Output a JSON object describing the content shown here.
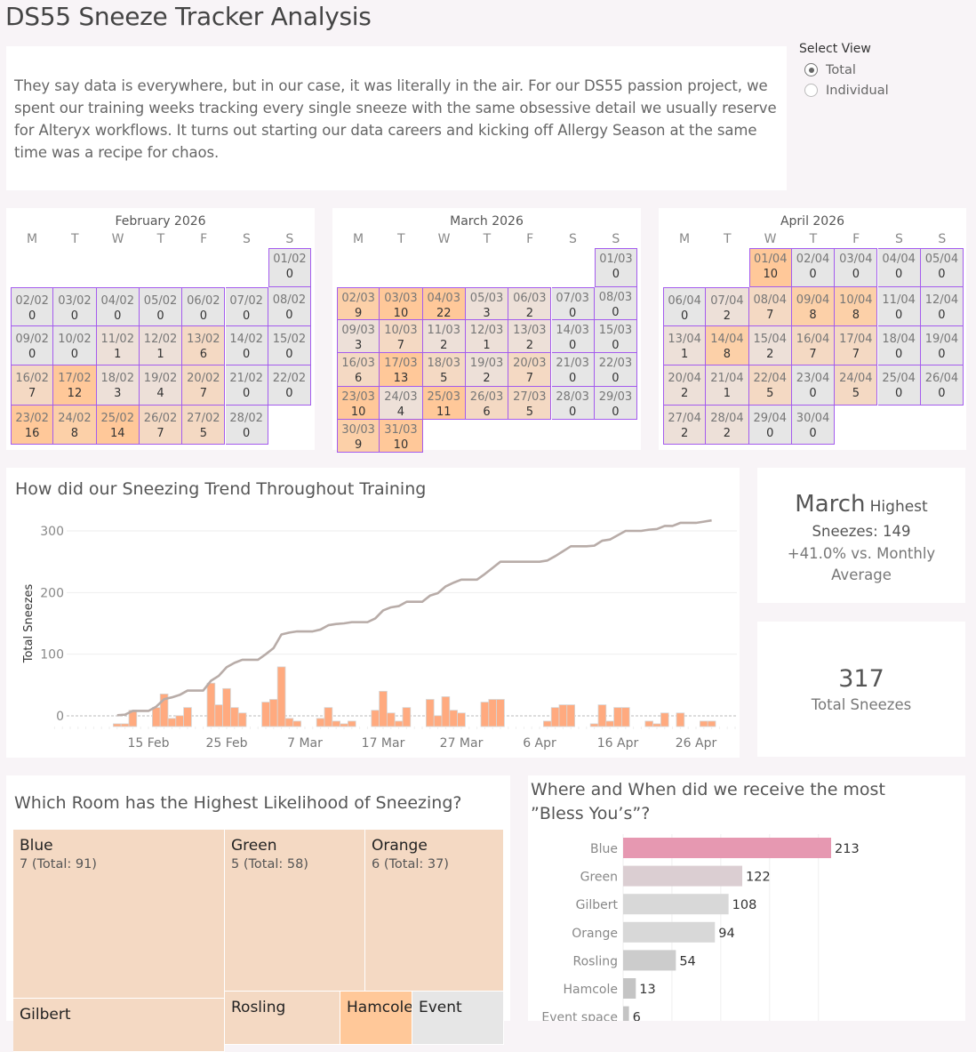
{
  "header": {
    "title": "DS55 Sneeze Tracker Analysis"
  },
  "intro": {
    "text": "They say data is everywhere, but in our case, it was literally in the air. For our DS55 passion project, we spent our training weeks tracking every single sneeze with the same obsessive detail we usually reserve for Alteryx workflows. It turns out starting our data careers and kicking off Allergy Season at the same time was a recipe for chaos."
  },
  "select_view": {
    "label": "Select View",
    "options": [
      {
        "label": "Total",
        "selected": true
      },
      {
        "label": "Individual",
        "selected": false
      }
    ]
  },
  "weekday_labels": [
    "M",
    "T",
    "W",
    "T",
    "F",
    "S",
    "S"
  ],
  "calendars": [
    {
      "title": "February 2026",
      "start_col": 6,
      "month": "02",
      "values": [
        0,
        0,
        0,
        0,
        0,
        0,
        0,
        0,
        0,
        0,
        1,
        1,
        6,
        0,
        0,
        7,
        12,
        3,
        4,
        7,
        0,
        0,
        16,
        8,
        14,
        7,
        5,
        0
      ]
    },
    {
      "title": "March 2026",
      "start_col": 6,
      "month": "03",
      "values": [
        0,
        9,
        10,
        22,
        3,
        2,
        0,
        0,
        3,
        7,
        2,
        1,
        2,
        0,
        0,
        6,
        13,
        5,
        2,
        7,
        0,
        0,
        10,
        4,
        11,
        6,
        5,
        0,
        0,
        9,
        10
      ]
    },
    {
      "title": "April 2026",
      "start_col": 2,
      "month": "04",
      "values": [
        10,
        0,
        0,
        0,
        0,
        0,
        2,
        7,
        8,
        8,
        0,
        0,
        1,
        8,
        2,
        7,
        7,
        0,
        0,
        2,
        1,
        5,
        0,
        5,
        0,
        0,
        2,
        2,
        0,
        0
      ]
    }
  ],
  "trend": {
    "title": "How did our Sneezing Trend Throughout Training",
    "colors": {
      "line": "#b8aca8",
      "bar": "#ffaa7f"
    }
  },
  "chart_data": [
    {
      "type": "line+bar",
      "title": "How did our Sneezing Trend Throughout Training",
      "ylabel": "Total Sneezes",
      "yticks": [
        0,
        100,
        200,
        300
      ],
      "ylim": [
        0,
        300
      ],
      "xticks": [
        "15 Feb",
        "25 Feb",
        "7 Mar",
        "17 Mar",
        "27 Mar",
        "6 Apr",
        "16 Apr",
        "26 Apr"
      ],
      "x_start": "2026-02-11",
      "series": [
        {
          "name": "Cumulative Sneezes",
          "kind": "line",
          "note": "running total of daily values, ends at 317"
        },
        {
          "name": "Daily Sneezes",
          "kind": "bar",
          "values": [
            1,
            1,
            6,
            0,
            0,
            7,
            12,
            3,
            4,
            7,
            0,
            0,
            16,
            8,
            14,
            7,
            5,
            0,
            0,
            9,
            10,
            22,
            3,
            2,
            0,
            0,
            3,
            7,
            2,
            1,
            2,
            0,
            0,
            6,
            13,
            5,
            2,
            7,
            0,
            0,
            10,
            4,
            11,
            6,
            5,
            0,
            0,
            9,
            10,
            10,
            0,
            0,
            0,
            0,
            0,
            2,
            7,
            8,
            8,
            0,
            0,
            1,
            8,
            2,
            7,
            7,
            0,
            0,
            2,
            1,
            5,
            0,
            5,
            0,
            0,
            2,
            2
          ]
        }
      ]
    },
    {
      "type": "treemap",
      "title": "Which Room has the Highest Likelihood of Sneezing?",
      "items": [
        {
          "name": "Blue",
          "label": "7 (Total: 91)",
          "value": 91,
          "color": "#f4d9c3"
        },
        {
          "name": "Green",
          "label": "5 (Total: 58)",
          "value": 58,
          "color": "#f4d9c3"
        },
        {
          "name": "Orange",
          "label": "6 (Total: 37)",
          "value": 37,
          "color": "#f4d9c3"
        },
        {
          "name": "Gilbert",
          "label": "",
          "value": 0,
          "color": "#f4d9c3"
        },
        {
          "name": "Rosling",
          "label": "",
          "value": 0,
          "color": "#f4d9c3"
        },
        {
          "name": "Hamcole",
          "label": "",
          "value": 0,
          "color": "#ffc899"
        },
        {
          "name": "Event",
          "label": "",
          "value": 0,
          "color": "#e6e6e6"
        }
      ]
    },
    {
      "type": "bar",
      "orientation": "horizontal",
      "title": "Where and When did we receive the most ”Bless You’s”?",
      "categories": [
        "Blue",
        "Green",
        "Gilbert",
        "Orange",
        "Rosling",
        "Hamcole",
        "Event space"
      ],
      "values": [
        213,
        122,
        108,
        94,
        54,
        13,
        6
      ],
      "colors": [
        "#e698b1",
        "#dbced2",
        "#d8d8d8",
        "#d8d8d8",
        "#cccccc",
        "#c4c4c4",
        "#c4c4c4"
      ],
      "xlim": [
        0,
        250
      ]
    }
  ],
  "kpi_month": {
    "month": "March",
    "highest": "Highest",
    "sneezes_line": "Sneezes: 149",
    "compare": "+41.0% vs. Monthly Average"
  },
  "kpi_total": {
    "value": "317",
    "label": "Total Sneezes"
  },
  "treemap": {
    "title": "Which Room has the Highest Likelihood of Sneezing?"
  },
  "bless": {
    "title_line1": "Where and When did we receive the most",
    "title_line2": "”Bless You’s”?"
  }
}
